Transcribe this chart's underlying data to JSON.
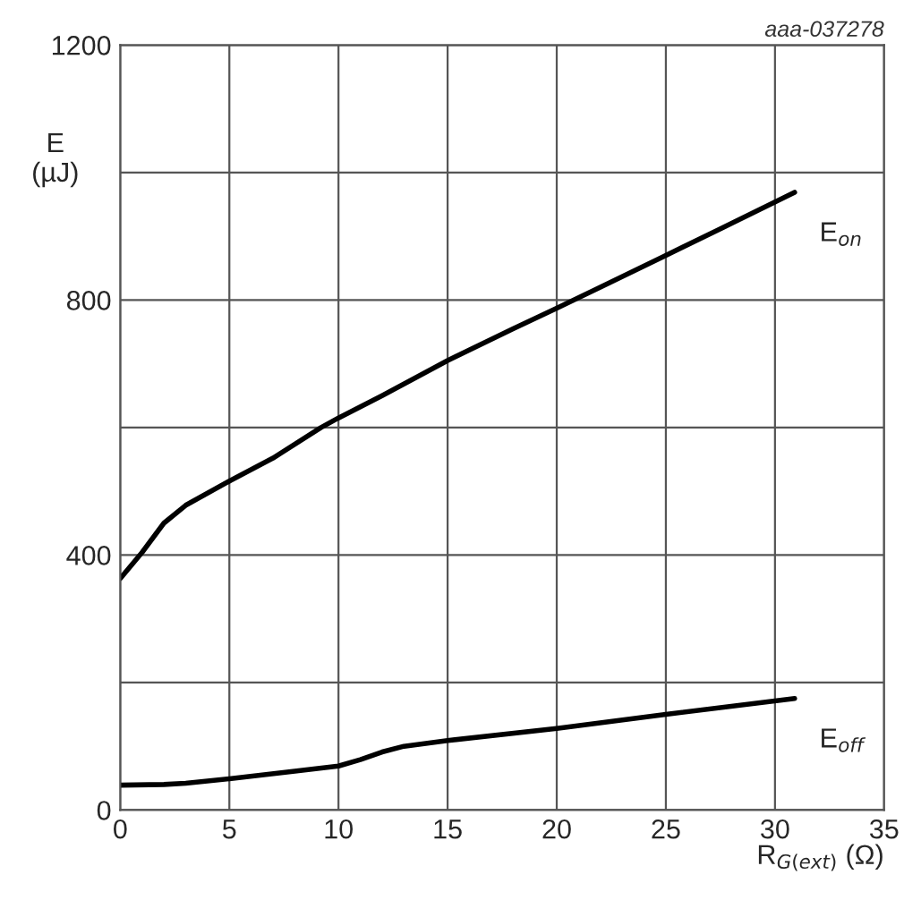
{
  "chart_data": {
    "type": "line",
    "xlabel": "R$_{G(ext)}$ (Ω)",
    "ylabel": "E\n(µJ)",
    "annotations": [
      "aaa-037278"
    ],
    "xlim": [
      0,
      35
    ],
    "xticks": [
      0,
      5,
      10,
      15,
      20,
      25,
      30,
      35
    ],
    "ylim": [
      0,
      1200
    ],
    "yticks": [
      0,
      {
        "value": 200,
        "label": null
      },
      400,
      {
        "value": 600,
        "label": null
      },
      800,
      {
        "value": 1000,
        "label": null
      },
      1200
    ],
    "grid": true,
    "legend": false,
    "marker": "none",
    "line_style": "solid",
    "series": [
      {
        "name": "E$_{on}$",
        "color": "#000000",
        "x": [
          0,
          1,
          2,
          3,
          5,
          7,
          9.2,
          10,
          12,
          15,
          18,
          20,
          22,
          25,
          28,
          30.9
        ],
        "values": [
          363,
          404,
          450,
          478,
          516,
          552,
          600,
          615,
          650,
          705,
          755,
          787,
          820,
          870,
          920,
          969
        ]
      },
      {
        "name": "E$_{off}$",
        "color": "#000000",
        "x": [
          0,
          2,
          3,
          5,
          8,
          10,
          11,
          12,
          13,
          15,
          20,
          25,
          30.9
        ],
        "values": [
          39,
          40,
          42,
          49,
          61,
          69,
          79,
          91,
          100,
          109,
          128,
          150,
          175
        ]
      }
    ]
  }
}
